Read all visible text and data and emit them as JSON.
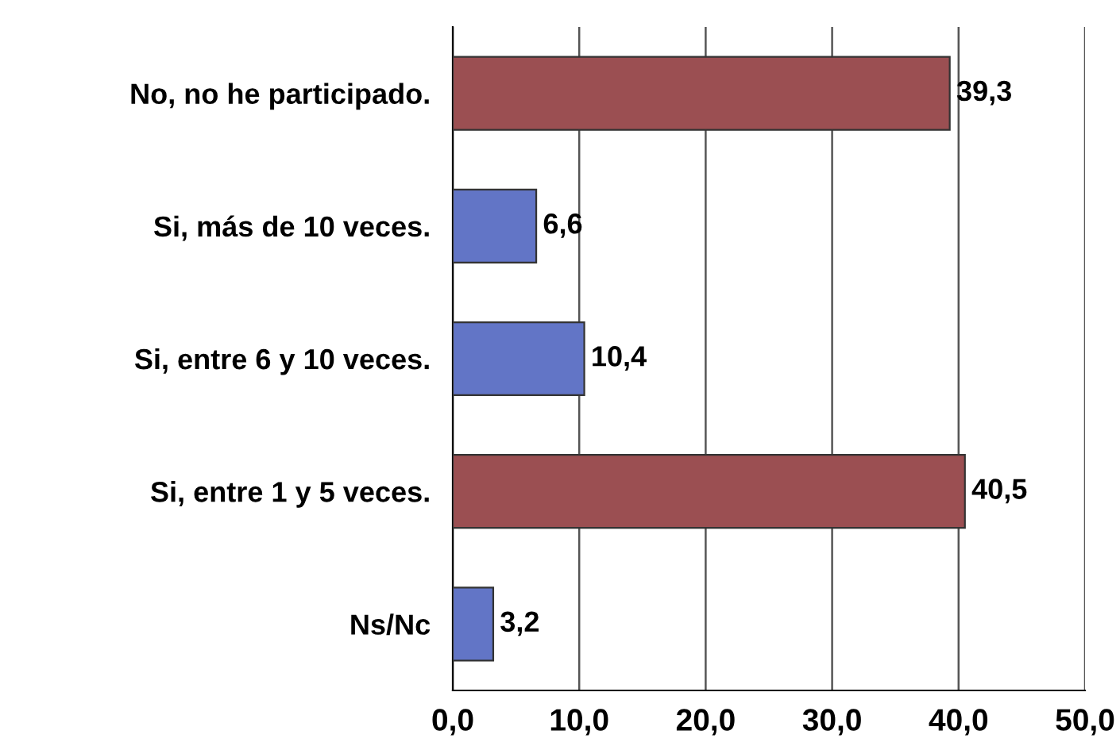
{
  "chart_data": {
    "type": "bar",
    "orientation": "horizontal",
    "categories": [
      "No, no he participado.",
      "Si, más de 10 veces.",
      "Si, entre 6 y 10 veces.",
      "Si, entre 1 y 5 veces.",
      "Ns/Nc"
    ],
    "values": [
      39.3,
      6.6,
      10.4,
      40.5,
      3.2
    ],
    "colors": [
      "#9b4f52",
      "#6275c6",
      "#6275c6",
      "#9b4f52",
      "#6275c6"
    ],
    "value_labels": [
      "39,3",
      "6,6",
      "10,4",
      "40,5",
      "3,2"
    ],
    "xlim": [
      0,
      50
    ],
    "xticks": [
      {
        "value": 0,
        "label": "0,0"
      },
      {
        "value": 10,
        "label": "10,0"
      },
      {
        "value": 20,
        "label": "20,0"
      },
      {
        "value": 30,
        "label": "30,0"
      },
      {
        "value": 40,
        "label": "40,0"
      },
      {
        "value": 50,
        "label": "50,0"
      }
    ],
    "grid": "x"
  }
}
